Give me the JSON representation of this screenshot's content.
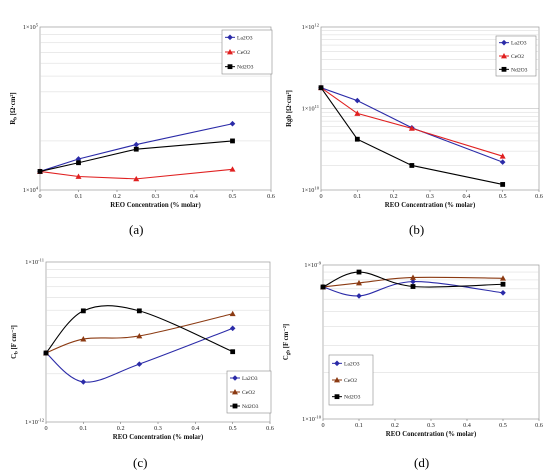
{
  "panels": [
    {
      "caption": "(a)"
    },
    {
      "caption": "(b)"
    },
    {
      "caption": "(c)"
    },
    {
      "caption": "(d)"
    }
  ],
  "colors": {
    "La2O3": "#2b2ba8",
    "CeO2_red": "#e02020",
    "CeO2_brown": "#8b3a12",
    "Nd2O3": "#000000"
  },
  "chart_data": [
    {
      "type": "line",
      "title": "",
      "xlabel": "REO Concentration (% molar)",
      "ylabel": "R_b [Ω·cm²]",
      "ylabel_main": "R",
      "ylabel_sub": "b",
      "ylabel_unit": " [Ω·cm²]",
      "xlim": [
        0,
        0.6
      ],
      "xticks": [
        "0",
        "0.1",
        "0.2",
        "0.3",
        "0.4",
        "0.5",
        "0.6"
      ],
      "ylim": [
        10000,
        100000
      ],
      "yscale": "log",
      "ytick_labels": [
        "1×10^4",
        "1×10^5"
      ],
      "grid": true,
      "legend_position": "top-right",
      "series": [
        {
          "name": "La2O3",
          "color": "#2b2ba8",
          "marker": "diamond",
          "x": [
            0,
            0.1,
            0.25,
            0.5
          ],
          "y": [
            13000,
            15500,
            19000,
            25500
          ]
        },
        {
          "name": "CeO2",
          "color": "#e02020",
          "marker": "triangle",
          "x": [
            0,
            0.1,
            0.25,
            0.5
          ],
          "y": [
            13000,
            12100,
            11700,
            13400
          ]
        },
        {
          "name": "Nd2O3",
          "color": "#000000",
          "marker": "square",
          "x": [
            0,
            0.1,
            0.25,
            0.5
          ],
          "y": [
            13000,
            14700,
            17800,
            20000
          ]
        }
      ]
    },
    {
      "type": "line",
      "title": "",
      "xlabel": "REO Concentration (% molar)",
      "ylabel": "Rgb [Ω·cm²]",
      "ylabel_main": "Rgb",
      "ylabel_sub": "",
      "ylabel_unit": " [Ω·cm²]",
      "xlim": [
        0,
        0.6
      ],
      "xticks": [
        "0",
        "0.1",
        "0.2",
        "0.3",
        "0.4",
        "0.5",
        "0.6"
      ],
      "ylim": [
        10000000000,
        1000000000000
      ],
      "yscale": "log",
      "ytick_labels": [
        "1×10^10",
        "1×10^11",
        "1×10^12"
      ],
      "grid": true,
      "legend_position": "top-right",
      "series": [
        {
          "name": "La2O3",
          "color": "#2b2ba8",
          "marker": "diamond",
          "x": [
            0,
            0.1,
            0.25,
            0.5
          ],
          "y": [
            180000000000,
            125000000000,
            58000000000,
            22000000000
          ]
        },
        {
          "name": "CeO2",
          "color": "#e02020",
          "marker": "triangle",
          "x": [
            0,
            0.1,
            0.25,
            0.5
          ],
          "y": [
            180000000000,
            87000000000,
            57000000000,
            26000000000
          ]
        },
        {
          "name": "Nd2O3",
          "color": "#000000",
          "marker": "square",
          "x": [
            0,
            0.1,
            0.25,
            0.5
          ],
          "y": [
            180000000000,
            42000000000,
            20000000000,
            11700000000
          ]
        }
      ]
    },
    {
      "type": "line",
      "title": "",
      "xlabel": "REO Concentration (% molar)",
      "ylabel": "C_b [F cm⁻²]",
      "ylabel_main": "C",
      "ylabel_sub": "b",
      "ylabel_unit": " [F cm⁻²]",
      "xlim": [
        0,
        0.6
      ],
      "xticks": [
        "0",
        "0.1",
        "0.2",
        "0.3",
        "0.4",
        "0.5",
        "0.6"
      ],
      "ylim": [
        1e-12,
        1e-11
      ],
      "yscale": "log",
      "ytick_labels": [
        "1×10^-12",
        "1×10^-11"
      ],
      "grid": true,
      "legend_position": "bottom-right",
      "series": [
        {
          "name": "La2O3",
          "color": "#2b2ba8",
          "marker": "diamond",
          "x": [
            0,
            0.1,
            0.25,
            0.5
          ],
          "y": [
            2.7e-12,
            1.78e-12,
            2.3e-12,
            3.85e-12
          ]
        },
        {
          "name": "CeO2",
          "color": "#8b3a12",
          "marker": "triangle",
          "x": [
            0,
            0.1,
            0.25,
            0.5
          ],
          "y": [
            2.7e-12,
            3.3e-12,
            3.45e-12,
            4.75e-12
          ]
        },
        {
          "name": "Nd2O3",
          "color": "#000000",
          "marker": "square",
          "x": [
            0,
            0.1,
            0.25,
            0.5
          ],
          "y": [
            2.7e-12,
            4.95e-12,
            4.95e-12,
            2.75e-12
          ]
        }
      ]
    },
    {
      "type": "line",
      "title": "",
      "xlabel": "REO Concentration (% molar)",
      "ylabel": "C_gb [F cm⁻²]",
      "ylabel_main": "C",
      "ylabel_sub": "gb",
      "ylabel_unit": " [F cm⁻²]",
      "xlim": [
        0,
        0.6
      ],
      "xticks": [
        "0",
        "0.1",
        "0.2",
        "0.3",
        "0.4",
        "0.5",
        "0.6"
      ],
      "ylim": [
        1e-10,
        1e-09
      ],
      "yscale": "log",
      "ytick_labels": [
        "1×10^-10",
        "1×10^-9"
      ],
      "grid": true,
      "legend_position": "bottom-left",
      "series": [
        {
          "name": "La2O3",
          "color": "#2b2ba8",
          "marker": "diamond",
          "x": [
            0,
            0.1,
            0.25,
            0.5
          ],
          "y": [
            7.2e-10,
            6.3e-10,
            7.8e-10,
            6.6e-10
          ]
        },
        {
          "name": "CeO2",
          "color": "#8b3a12",
          "marker": "triangle",
          "x": [
            0,
            0.1,
            0.25,
            0.5
          ],
          "y": [
            7.2e-10,
            7.65e-10,
            8.3e-10,
            8.2e-10
          ]
        },
        {
          "name": "Nd2O3",
          "color": "#000000",
          "marker": "square",
          "x": [
            0,
            0.1,
            0.25,
            0.5
          ],
          "y": [
            7.2e-10,
            9e-10,
            7.25e-10,
            7.5e-10
          ]
        }
      ]
    }
  ]
}
